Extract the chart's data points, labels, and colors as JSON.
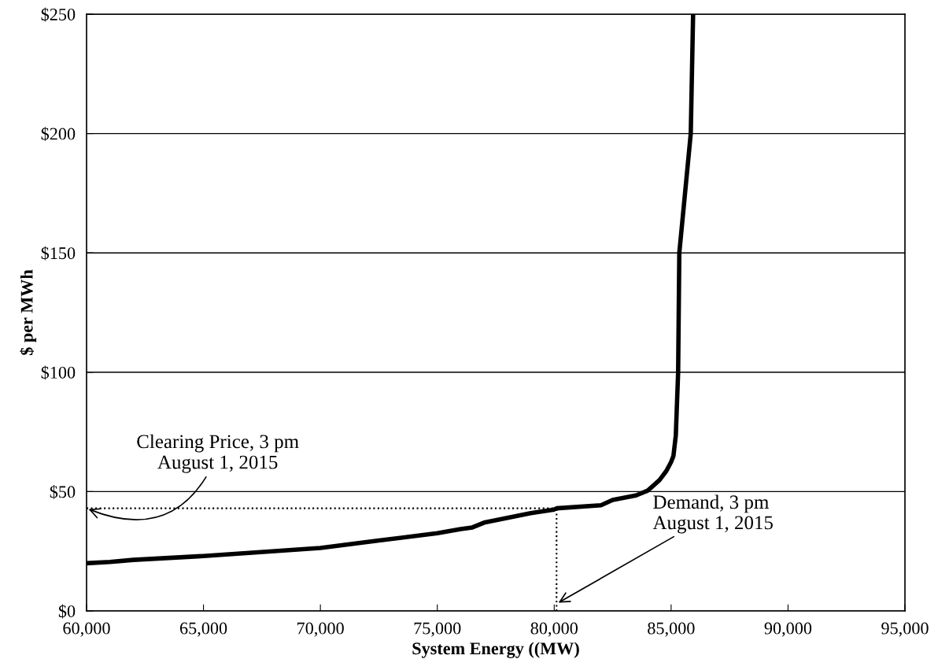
{
  "chart_data": {
    "type": "line",
    "xlabel": "System Energy ((MW)",
    "ylabel": "$ per MWh",
    "series": [
      {
        "color": "#000000",
        "x": [
          60000,
          61000,
          62000,
          65000,
          70000,
          72500,
          75000,
          76000,
          76500,
          77000,
          78000,
          79000,
          80000,
          80100,
          82000,
          82500,
          83500,
          84000,
          84500,
          84800,
          85000,
          85100,
          85200,
          85300,
          85350,
          85840,
          85940
        ],
        "values": [
          20,
          20.5,
          21.4,
          23,
          26.4,
          29.5,
          32.6,
          34.3,
          35,
          37,
          39,
          41,
          42.5,
          43,
          44.3,
          46.5,
          48.4,
          50.4,
          54.8,
          58.7,
          62.4,
          65,
          73.5,
          100,
          150,
          200,
          250
        ]
      }
    ],
    "xlim": [
      60000,
      95000
    ],
    "ylim": [
      0,
      250
    ],
    "xticks": [
      {
        "value": 60000,
        "label": "60,000"
      },
      {
        "value": 65000,
        "label": "65,000"
      },
      {
        "value": 70000,
        "label": "70,000"
      },
      {
        "value": 75000,
        "label": "75,000"
      },
      {
        "value": 80000,
        "label": "80,000"
      },
      {
        "value": 85000,
        "label": "85,000"
      },
      {
        "value": 90000,
        "label": "90,000"
      },
      {
        "value": 95000,
        "label": "95,000"
      }
    ],
    "yticks": [
      {
        "value": 0,
        "label": "$0"
      },
      {
        "value": 50,
        "label": "$50"
      },
      {
        "value": 100,
        "label": "$100"
      },
      {
        "value": 150,
        "label": "$150"
      },
      {
        "value": 200,
        "label": "$200"
      },
      {
        "value": 250,
        "label": "$250"
      }
    ],
    "grid": "y",
    "line_style": "solid",
    "marker": "none",
    "ref_lines": [
      {
        "axis": "y",
        "value": 43,
        "color": "#000000",
        "line_style": "dotted"
      },
      {
        "axis": "x",
        "value": 80100,
        "color": "#000000",
        "line_style": "dotted"
      }
    ],
    "annotations": [
      {
        "text": "Clearing Price, 3 pm\nAugust 1, 2015",
        "x": 60000,
        "y": 43
      },
      {
        "text": "Demand, 3 pm\nAugust 1, 2015",
        "x": 80100,
        "y": 3
      }
    ],
    "legend": false
  }
}
